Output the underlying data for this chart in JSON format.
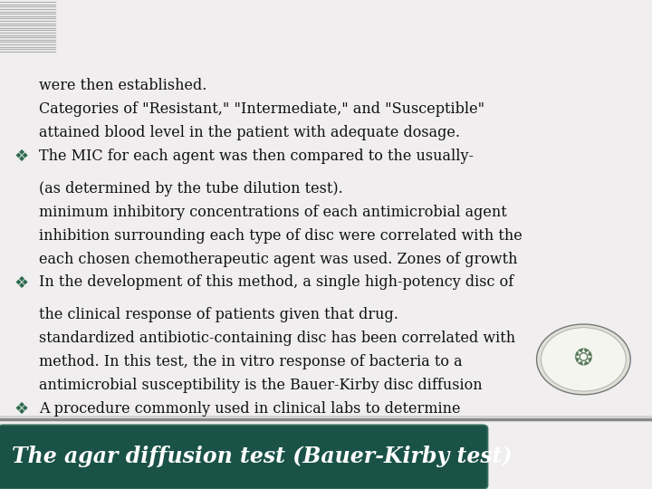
{
  "title": "The agar diffusion test (Bauer-Kirby test)",
  "title_bg_color": "#1a5247",
  "title_text_color": "#ffffff",
  "body_bg_color": "#f0eeee",
  "bullet_color": "#2e6b4f",
  "text_color": "#111111",
  "bullet1_lines": [
    "A procedure commonly used in clinical labs to determine",
    "antimicrobial susceptibility is the Bauer-Kirby disc diffusion",
    "method. In this test, the in vitro response of bacteria to a",
    "standardized antibiotic-containing disc has been correlated with",
    "the clinical response of patients given that drug."
  ],
  "bullet2_lines": [
    "In the development of this method, a single high-potency disc of",
    "each chosen chemotherapeutic agent was used. Zones of growth",
    "inhibition surrounding each type of disc were correlated with the",
    "minimum inhibitory concentrations of each antimicrobial agent",
    "(as determined by the tube dilution test)."
  ],
  "bullet3_lines": [
    "The MIC for each agent was then compared to the usually-",
    "attained blood level in the patient with adequate dosage.",
    "Categories of \"Resistant,\" \"Intermediate,\" and \"Susceptible\"",
    "were then established."
  ],
  "left_stripe_color": "#b0b0b0",
  "fig_width": 7.2,
  "fig_height": 5.4,
  "dpi": 100
}
